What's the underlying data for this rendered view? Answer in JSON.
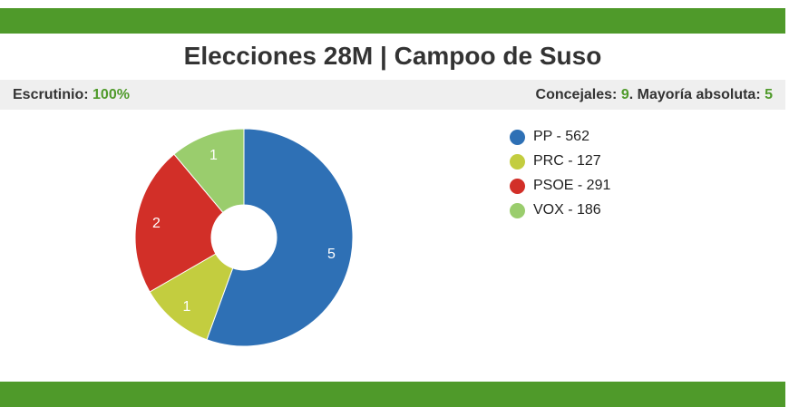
{
  "header": {
    "title": "Elecciones 28M | Campoo de Suso"
  },
  "info": {
    "scrutiny_label": "Escrutinio:",
    "scrutiny_value": "100%",
    "councillors_label": "Concejales:",
    "councillors_value": "9",
    "majority_label": ". Mayoría absoluta:",
    "majority_value": "5"
  },
  "colors": {
    "brand_green": "#4f9a2a"
  },
  "chart_data": {
    "type": "pie",
    "donut": true,
    "slices": [
      {
        "party": "PP",
        "votes": 562,
        "seats": 5,
        "color": "#2e70b5",
        "legend": "PP - 562",
        "label": "5"
      },
      {
        "party": "PRC",
        "votes": 127,
        "seats": 1,
        "color": "#c3cd3f",
        "legend": "PRC - 127",
        "label": "1"
      },
      {
        "party": "PSOE",
        "votes": 291,
        "seats": 2,
        "color": "#d22f28",
        "legend": "PSOE - 291",
        "label": "2"
      },
      {
        "party": "VOX",
        "votes": 186,
        "seats": 1,
        "color": "#9acd6d",
        "legend": "VOX - 186",
        "label": "1"
      }
    ],
    "legend_position": "right"
  }
}
